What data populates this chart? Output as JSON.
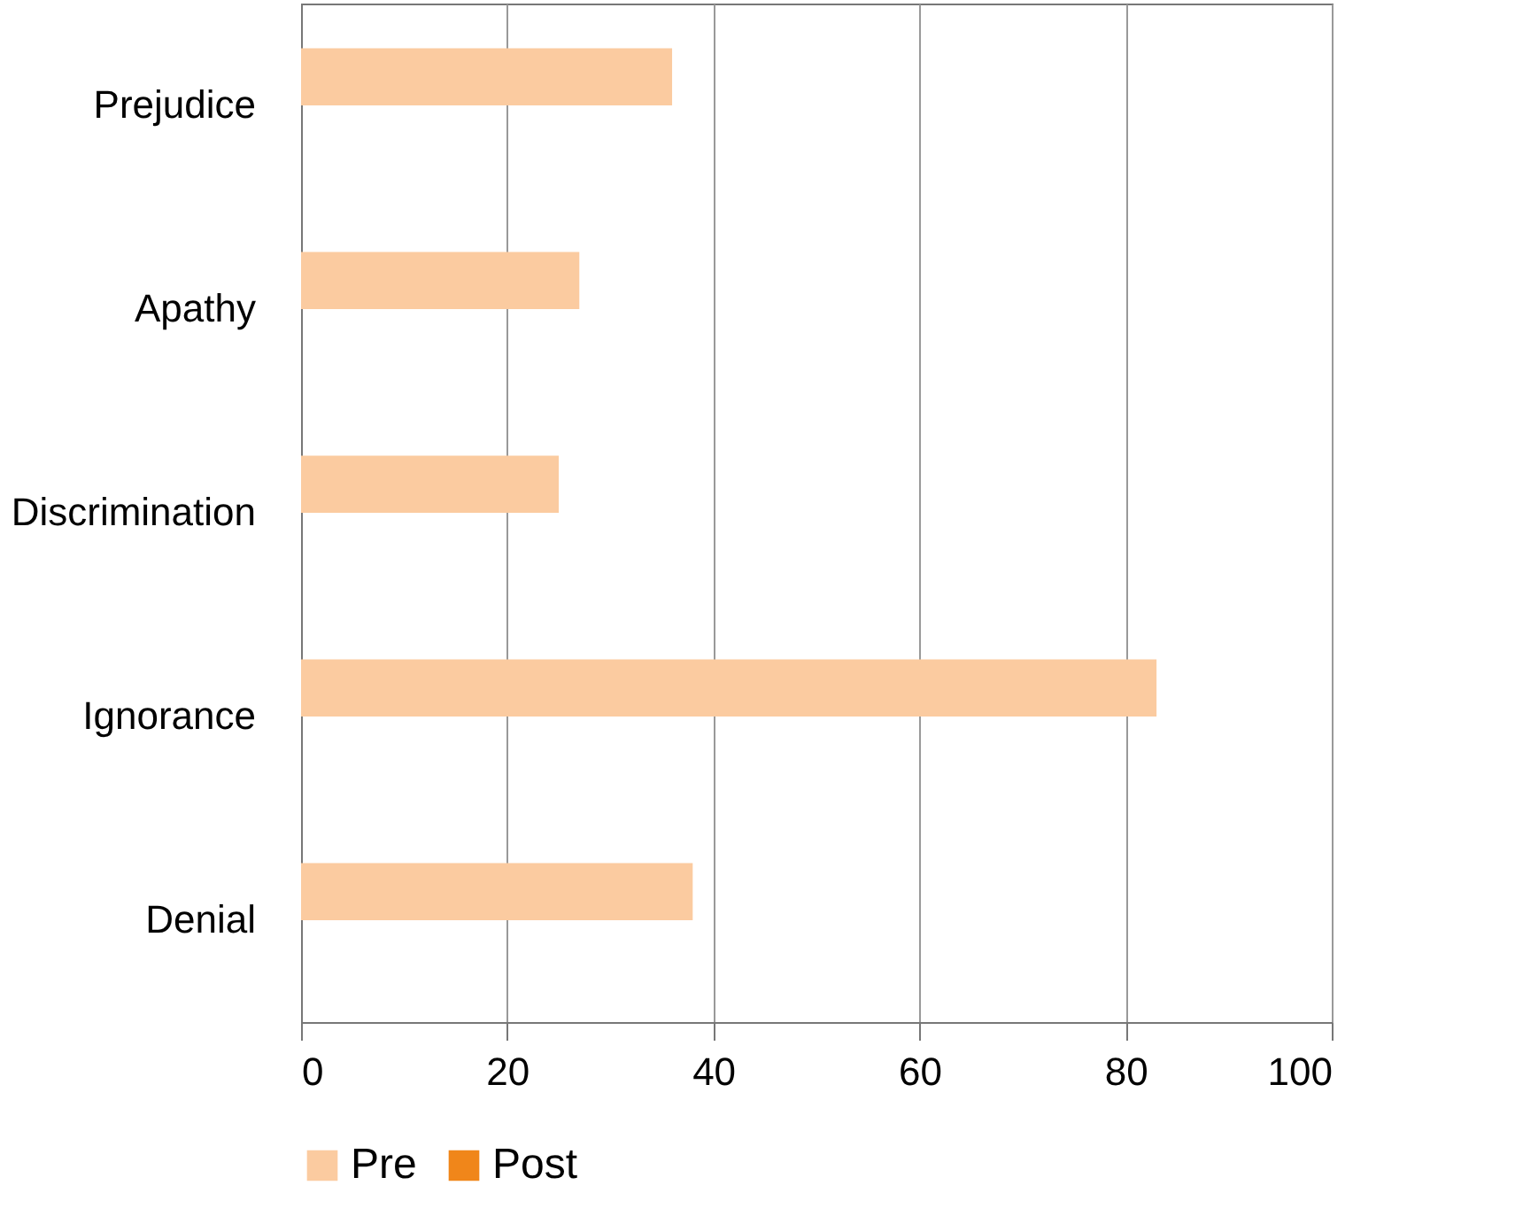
{
  "chart_data": {
    "type": "bar",
    "orientation": "horizontal",
    "categories": [
      "Prejudice",
      "Apathy",
      "Discrimination",
      "Ignorance",
      "Denial"
    ],
    "series": [
      {
        "name": "Pre",
        "color": "#fbcba0",
        "values": [
          36,
          27,
          25,
          83,
          38
        ]
      },
      {
        "name": "Post",
        "color": "#f0861a",
        "values": [
          null,
          null,
          null,
          null,
          null
        ]
      }
    ],
    "xlim": [
      0,
      100
    ],
    "xticks": [
      0,
      20,
      40,
      60,
      80,
      100
    ],
    "grid": "x",
    "legend": "bottom"
  }
}
